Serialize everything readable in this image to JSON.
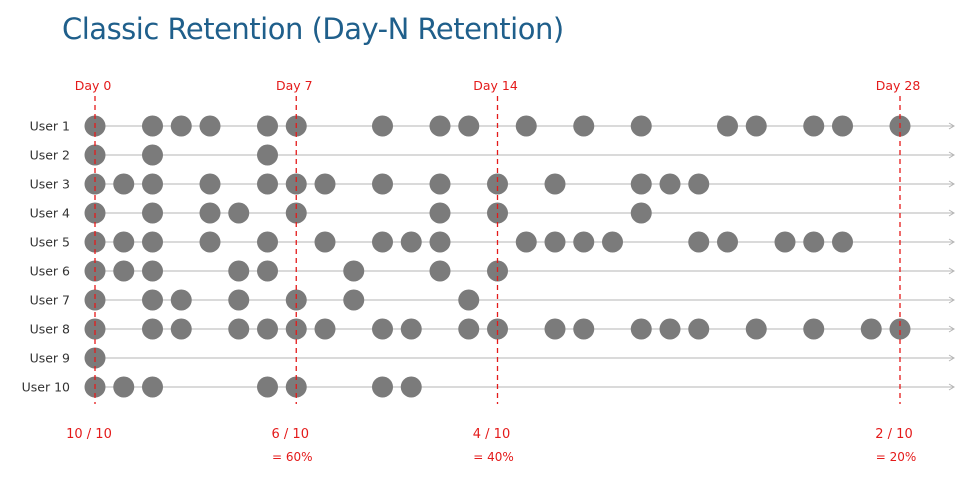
{
  "title": "Classic Retention (Day-N Retention)",
  "colors": {
    "title": "#1f5f8b",
    "accent": "#e41a1a",
    "dot": "#7b7b7b",
    "line": "#b5b5b5",
    "label": "#333333"
  },
  "day_markers": [
    {
      "label": "Day 0",
      "day": 0,
      "summary": "10 / 10",
      "percent": ""
    },
    {
      "label": "Day 7",
      "day": 7,
      "summary": "6 / 10",
      "percent": "= 60%"
    },
    {
      "label": "Day 14",
      "day": 14,
      "summary": "4 / 10",
      "percent": "= 40%"
    },
    {
      "label": "Day 28",
      "day": 28,
      "summary": "2 / 10",
      "percent": "= 20%"
    }
  ],
  "users": [
    {
      "label": "User 1",
      "days": [
        0,
        2,
        3,
        4,
        6,
        7,
        10,
        12,
        13,
        15,
        17,
        19,
        22,
        23,
        25,
        26,
        28
      ]
    },
    {
      "label": "User 2",
      "days": [
        0,
        2,
        6
      ]
    },
    {
      "label": "User 3",
      "days": [
        0,
        1,
        2,
        4,
        6,
        7,
        8,
        10,
        12,
        14,
        16,
        19,
        20,
        21
      ]
    },
    {
      "label": "User 4",
      "days": [
        0,
        2,
        4,
        5,
        7,
        12,
        14,
        19
      ]
    },
    {
      "label": "User 5",
      "days": [
        0,
        1,
        2,
        4,
        6,
        8,
        10,
        11,
        12,
        15,
        16,
        17,
        18,
        21,
        22,
        24,
        25,
        26
      ]
    },
    {
      "label": "User 6",
      "days": [
        0,
        1,
        2,
        5,
        6,
        9,
        12,
        14
      ]
    },
    {
      "label": "User 7",
      "days": [
        0,
        2,
        3,
        5,
        7,
        9,
        13
      ]
    },
    {
      "label": "User 8",
      "days": [
        0,
        2,
        3,
        5,
        6,
        7,
        8,
        10,
        11,
        13,
        14,
        16,
        17,
        19,
        20,
        21,
        23,
        25,
        27,
        28
      ]
    },
    {
      "label": "User 9",
      "days": [
        0
      ]
    },
    {
      "label": "User 10",
      "days": [
        0,
        1,
        2,
        6,
        7,
        10,
        11
      ]
    }
  ]
}
